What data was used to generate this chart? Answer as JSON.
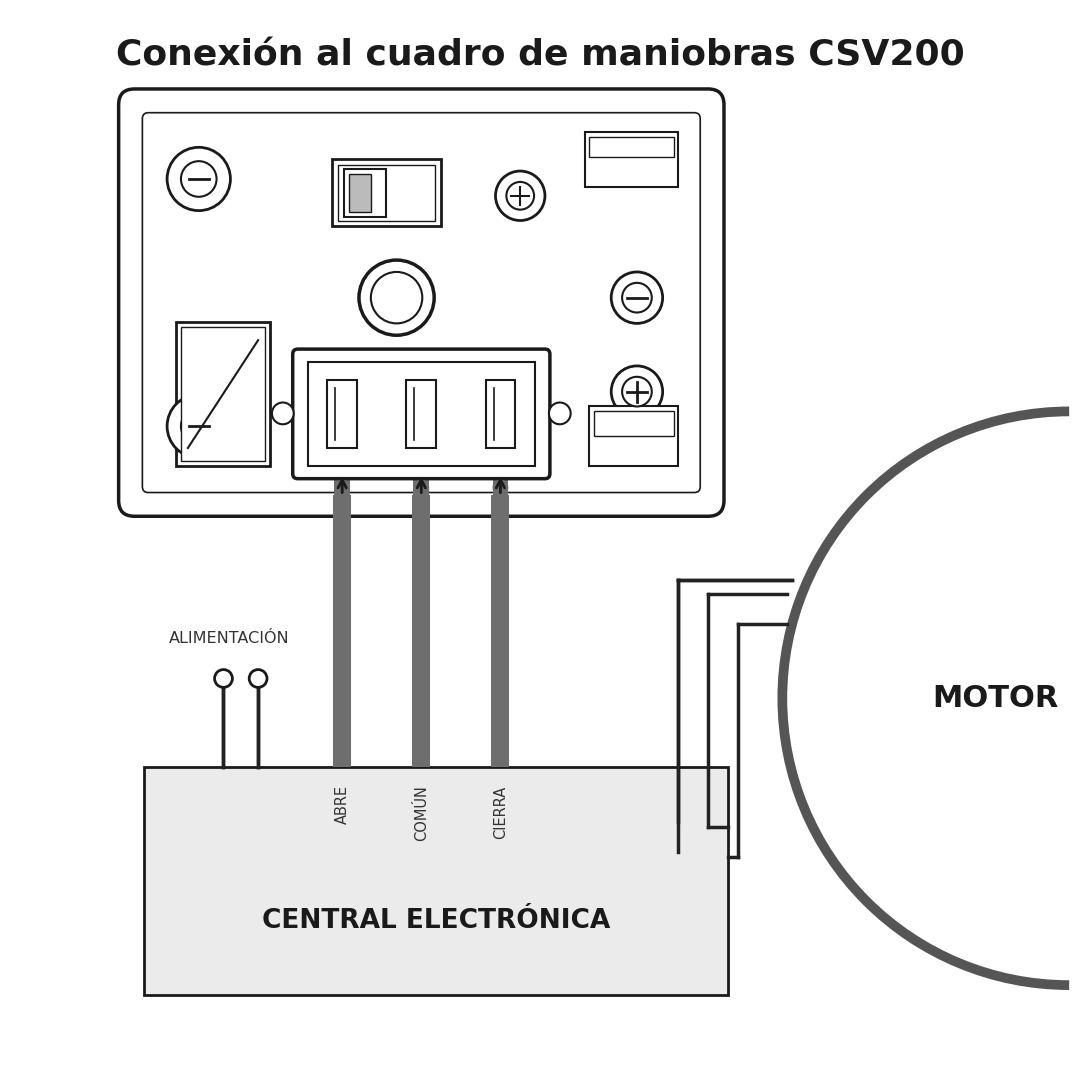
{
  "title": "Conexión al cuadro de maniobras CSV200",
  "title_fontsize": 26,
  "title_fontweight": "bold",
  "bg_color": "#ffffff",
  "line_color": "#1a1a1a",
  "gray_wire": "#6e6e6e",
  "box_fill": "#f0f0f0",
  "label_alimentacion": "ALIMENTACIÓN",
  "label_abre": "ABRE",
  "label_comun": "COMÚN",
  "label_cierra": "CIERRA",
  "label_central": "CENTRAL ELECTRÓNICA",
  "label_motor": "MOTOR"
}
